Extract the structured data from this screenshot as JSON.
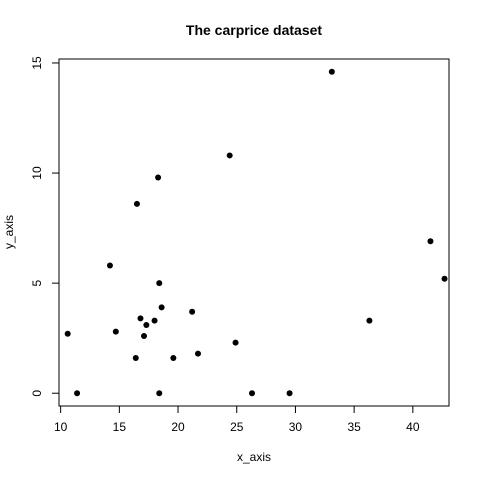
{
  "chart_data": {
    "type": "scatter",
    "title": "The carprice dataset",
    "xlabel": "x_axis",
    "ylabel": "y_axis",
    "xticks": [
      10,
      15,
      20,
      25,
      30,
      35,
      40
    ],
    "yticks": [
      0,
      5,
      10,
      15
    ],
    "xlim": [
      9.86,
      43.08
    ],
    "ylim": [
      -0.58,
      15.18
    ],
    "grid": false,
    "legend": "none",
    "marker_color": "#000000",
    "points": [
      {
        "x": 10.6,
        "y": 2.7
      },
      {
        "x": 11.4,
        "y": 0.0
      },
      {
        "x": 14.2,
        "y": 5.8
      },
      {
        "x": 14.7,
        "y": 2.8
      },
      {
        "x": 16.4,
        "y": 1.6
      },
      {
        "x": 16.5,
        "y": 8.6
      },
      {
        "x": 16.8,
        "y": 3.4
      },
      {
        "x": 17.1,
        "y": 2.6
      },
      {
        "x": 17.3,
        "y": 3.1
      },
      {
        "x": 18.0,
        "y": 3.3
      },
      {
        "x": 18.3,
        "y": 9.8
      },
      {
        "x": 18.4,
        "y": 5.0
      },
      {
        "x": 18.4,
        "y": 0.0
      },
      {
        "x": 18.6,
        "y": 3.9
      },
      {
        "x": 19.6,
        "y": 1.6
      },
      {
        "x": 21.2,
        "y": 3.7
      },
      {
        "x": 21.7,
        "y": 1.8
      },
      {
        "x": 24.4,
        "y": 10.8
      },
      {
        "x": 24.9,
        "y": 2.3
      },
      {
        "x": 26.3,
        "y": 0.0
      },
      {
        "x": 29.5,
        "y": 0.0
      },
      {
        "x": 33.1,
        "y": 14.6
      },
      {
        "x": 36.3,
        "y": 3.3
      },
      {
        "x": 41.5,
        "y": 6.9
      },
      {
        "x": 42.7,
        "y": 5.2
      }
    ]
  }
}
